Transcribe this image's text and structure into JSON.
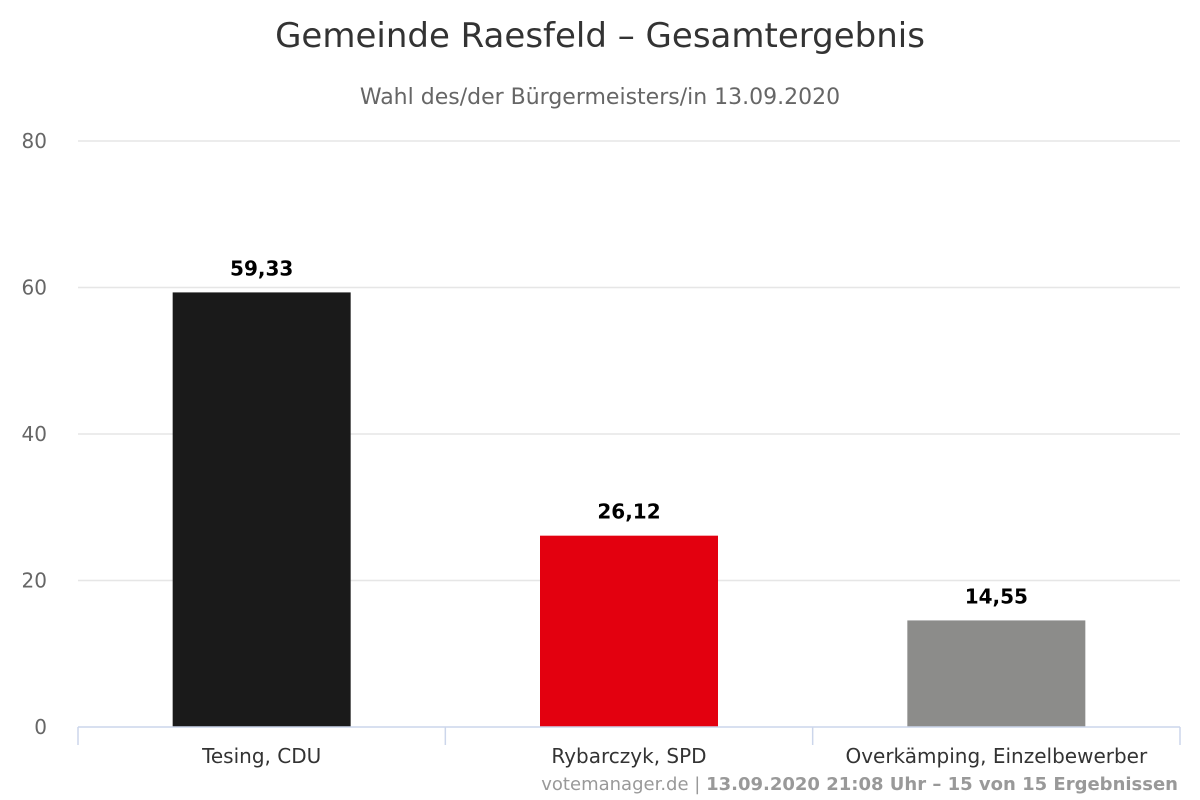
{
  "chart_data": {
    "type": "bar",
    "title": "Gemeinde Raesfeld – Gesamtergebnis",
    "subtitle": "Wahl des/der Bürgermeisters/in 13.09.2020",
    "categories": [
      "Tesing, CDU",
      "Rybarczyk, SPD",
      "Overkämping, Einzelbewerber"
    ],
    "values": [
      59.33,
      26.12,
      14.55
    ],
    "value_labels": [
      "59,33",
      "26,12",
      "14,55"
    ],
    "colors": [
      "#1a1a1a",
      "#e3000f",
      "#8c8c8a"
    ],
    "ylim": [
      0,
      80
    ],
    "yticks": [
      0,
      20,
      40,
      60,
      80
    ],
    "grid": true,
    "legend": false
  },
  "credits": {
    "source": "votemanager.de",
    "separator": " | ",
    "detail": "13.09.2020 21:08 Uhr – 15 von 15 Ergebnissen"
  }
}
